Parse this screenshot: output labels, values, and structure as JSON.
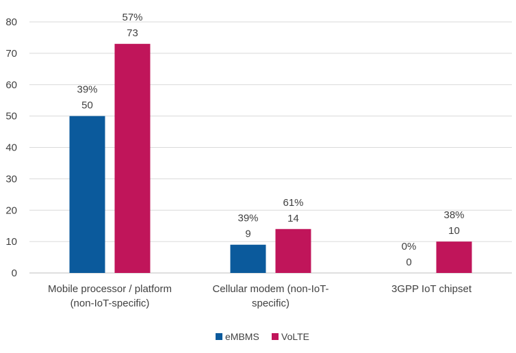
{
  "chart_data": {
    "type": "bar",
    "title": "",
    "xlabel": "",
    "ylabel": "",
    "ylim": [
      0,
      80
    ],
    "yticks": [
      0,
      10,
      20,
      30,
      40,
      50,
      60,
      70,
      80
    ],
    "grid": true,
    "legend_position": "bottom-center",
    "categories": [
      [
        "Mobile processor / platform",
        "(non-IoT-specific)"
      ],
      [
        "Cellular modem (non-IoT-",
        "specific)"
      ],
      [
        "3GPP IoT chipset"
      ]
    ],
    "series": [
      {
        "name": "eMBMS",
        "color": "#0b5a9c",
        "values": [
          50,
          9,
          0
        ],
        "percent_labels": [
          "39%",
          "39%",
          "0%"
        ]
      },
      {
        "name": "VoLTE",
        "color": "#c0155a",
        "values": [
          73,
          14,
          10
        ],
        "percent_labels": [
          "57%",
          "61%",
          "38%"
        ]
      }
    ]
  }
}
